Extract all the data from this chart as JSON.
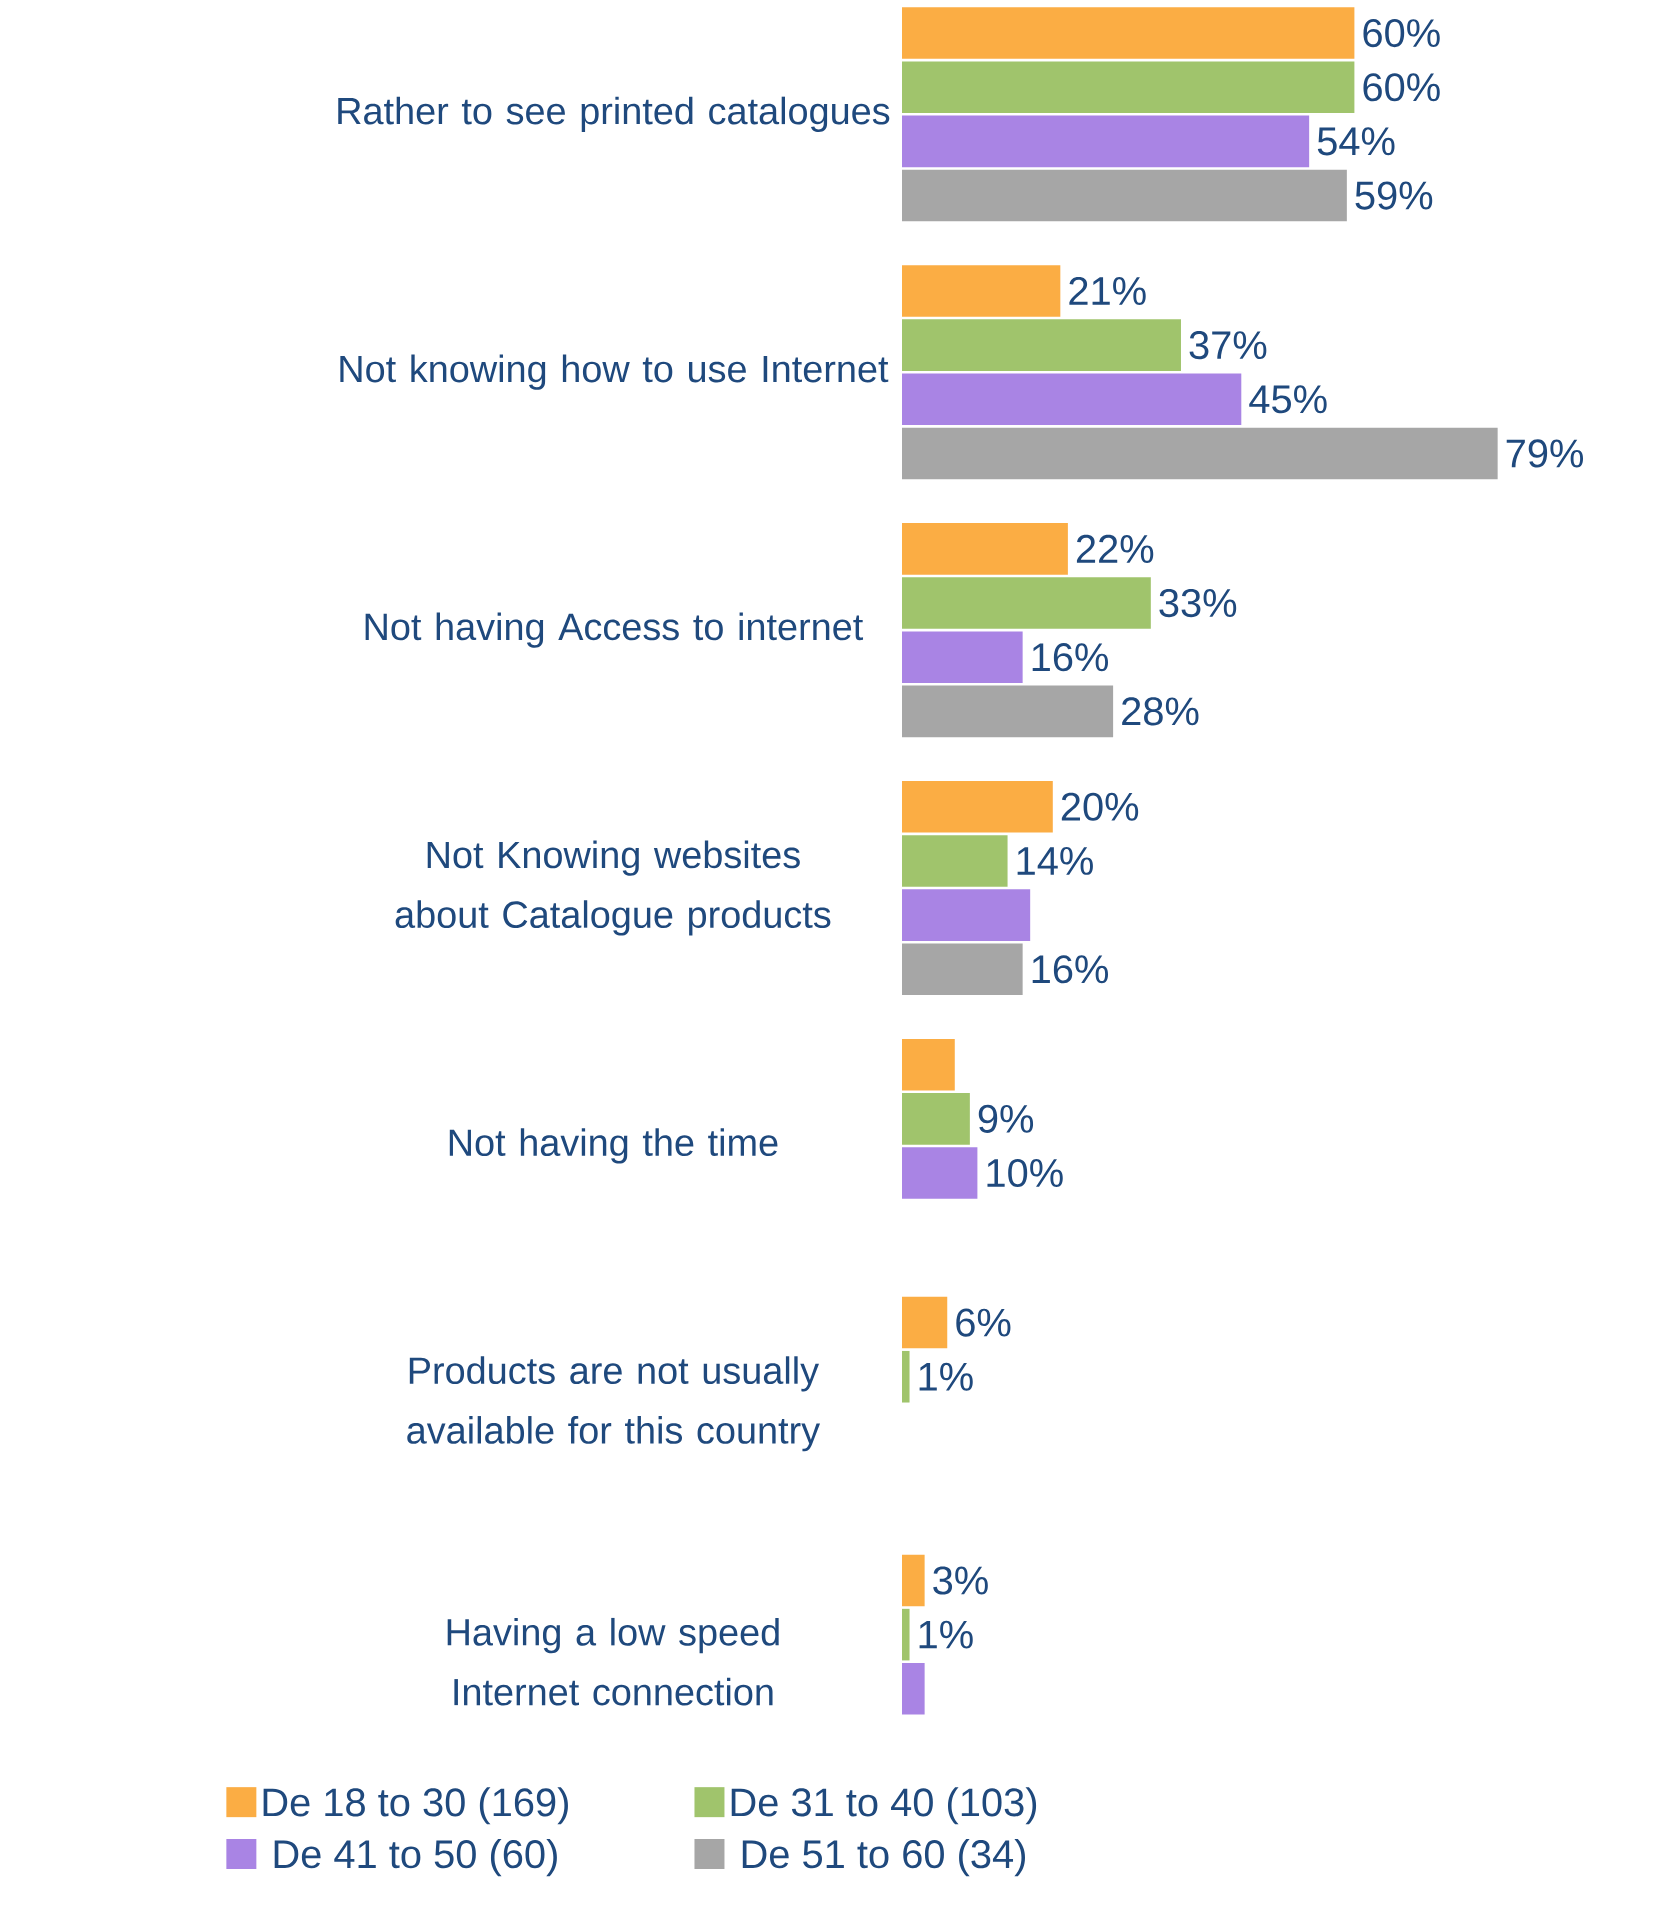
{
  "chart_data": {
    "type": "bar",
    "orientation": "horizontal",
    "categories": [
      "Rather to see printed catalogues",
      "Not knowing how to use Internet",
      "Not having Access to internet",
      "Not Knowing websites about Catalogue products",
      "Not having the time",
      "Products are not usually available for this country",
      "Having a low speed Internet connection"
    ],
    "series": [
      {
        "name": "De 18 to 30 (169)",
        "color": "#fbad44",
        "values": [
          60,
          21,
          22,
          20,
          7,
          6,
          3
        ],
        "value_labels": [
          "60%",
          "21%",
          "22%",
          "20%",
          null,
          "6%",
          "3%"
        ]
      },
      {
        "name": "De 31 to 40 (103)",
        "color": "#a0c46c",
        "values": [
          60,
          37,
          33,
          14,
          9,
          1,
          1
        ],
        "value_labels": [
          "60%",
          "37%",
          "33%",
          "14%",
          "9%",
          "1%",
          "1%"
        ]
      },
      {
        "name": "De 41 to 50 (60)",
        "color": "#a984e4",
        "values": [
          54,
          45,
          16,
          17,
          10,
          null,
          3
        ],
        "value_labels": [
          "54%",
          "45%",
          "16%",
          null,
          "10%",
          null,
          null
        ]
      },
      {
        "name": "De 51 to 60 (34)",
        "color": "#a6a6a6",
        "values": [
          59,
          79,
          28,
          16,
          null,
          null,
          null
        ],
        "value_labels": [
          "59%",
          "79%",
          "28%",
          "16%",
          null,
          null,
          null
        ]
      }
    ],
    "legend": "bottom"
  }
}
